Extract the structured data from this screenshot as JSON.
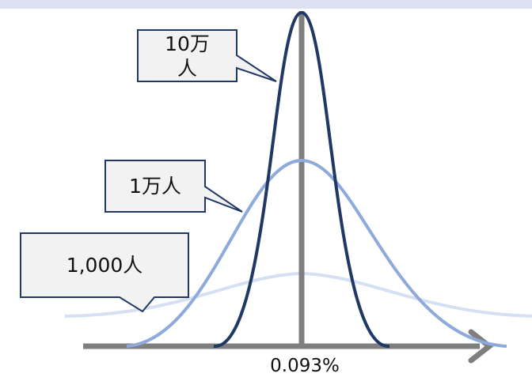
{
  "callouts": {
    "large": "10万\n人",
    "medium": "1万人",
    "small": "1,000人"
  },
  "axis": {
    "center_label": "0.093%"
  },
  "colors": {
    "top_bar": "#dde1f0",
    "axis": "#7f7f7f",
    "curve_large": "#1f3864",
    "curve_medium": "#8eaadb",
    "curve_small": "#d6e0f3",
    "callout_fill": "#f2f2f2",
    "callout_border_dark": "#1f3864",
    "callout_border_light": "#8eaadb"
  }
}
